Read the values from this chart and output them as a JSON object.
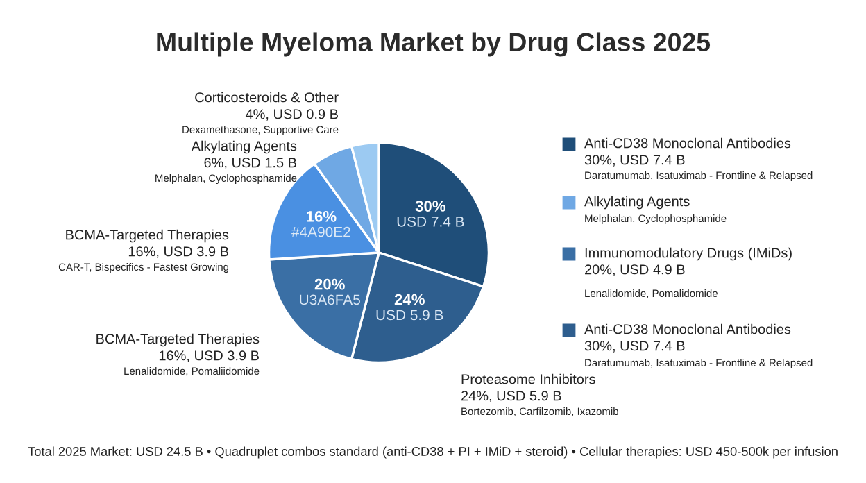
{
  "chart_data": {
    "type": "pie",
    "title": "Multiple Myeloma Market by Drug Class 2025",
    "categories": [
      null,
      "Proteasome Inhibitors",
      "BCMA-Targeted Therapies",
      "BCMA-Targeted Therapies",
      "Alkylating Agents",
      "Corticosteroids & Other"
    ],
    "values": [
      30,
      24,
      20,
      16,
      6,
      4
    ],
    "colors": [
      "#1f4e79",
      "#2e5e8e",
      "#3a6fa5",
      "#4a90e2",
      "#6fa8e4",
      "#9ccaf2"
    ],
    "value_labels": [
      "30%\nUSD 7.4 B",
      "24%\nUSD 5.9 B",
      "20%\nU3A6FA5",
      "16%\n#4A90E2",
      null,
      null
    ],
    "annotations": [
      "24%, USD 5.9 B",
      "Bortezomib, Carfilzomib, Ixazomib",
      "16%, USD 3.9 B",
      "Lenalidomide, Pomaliidomide",
      "16%, USD 3.9 B",
      "CAR-T, Bispecifics - Fastest Growing",
      "6%, USD 1.5 B",
      "Melphalan, Cyclophosphamide",
      "4%, USD 0.9 B",
      "Dexamethasone, Supportive Care",
      "Anti-CD38 Monoclonal Antibodies",
      "30%, USD 7.4 B",
      "Daratumumab, Isatuximab - Frontline & Relapsed",
      "Alkylating Agents",
      "Melphalan, Cyclophosphamide",
      "Immunomodulatory Drugs (IMiDs)",
      "20%, USD 4.9 B",
      "Lenalidomide, Pomalidomide",
      "Anti-CD38 Monoclonal Antibodies",
      "30%, USD 7.4 B",
      "Daratumumab, Isatuximab - Frontline & Relapsed",
      "Total 2025 Market: USD 24.5 B • Quadruplet combos standard (anti-CD38 + PI + IMiD + steroid) • Cellular therapies: USD 450-500k per infusion"
    ]
  }
}
